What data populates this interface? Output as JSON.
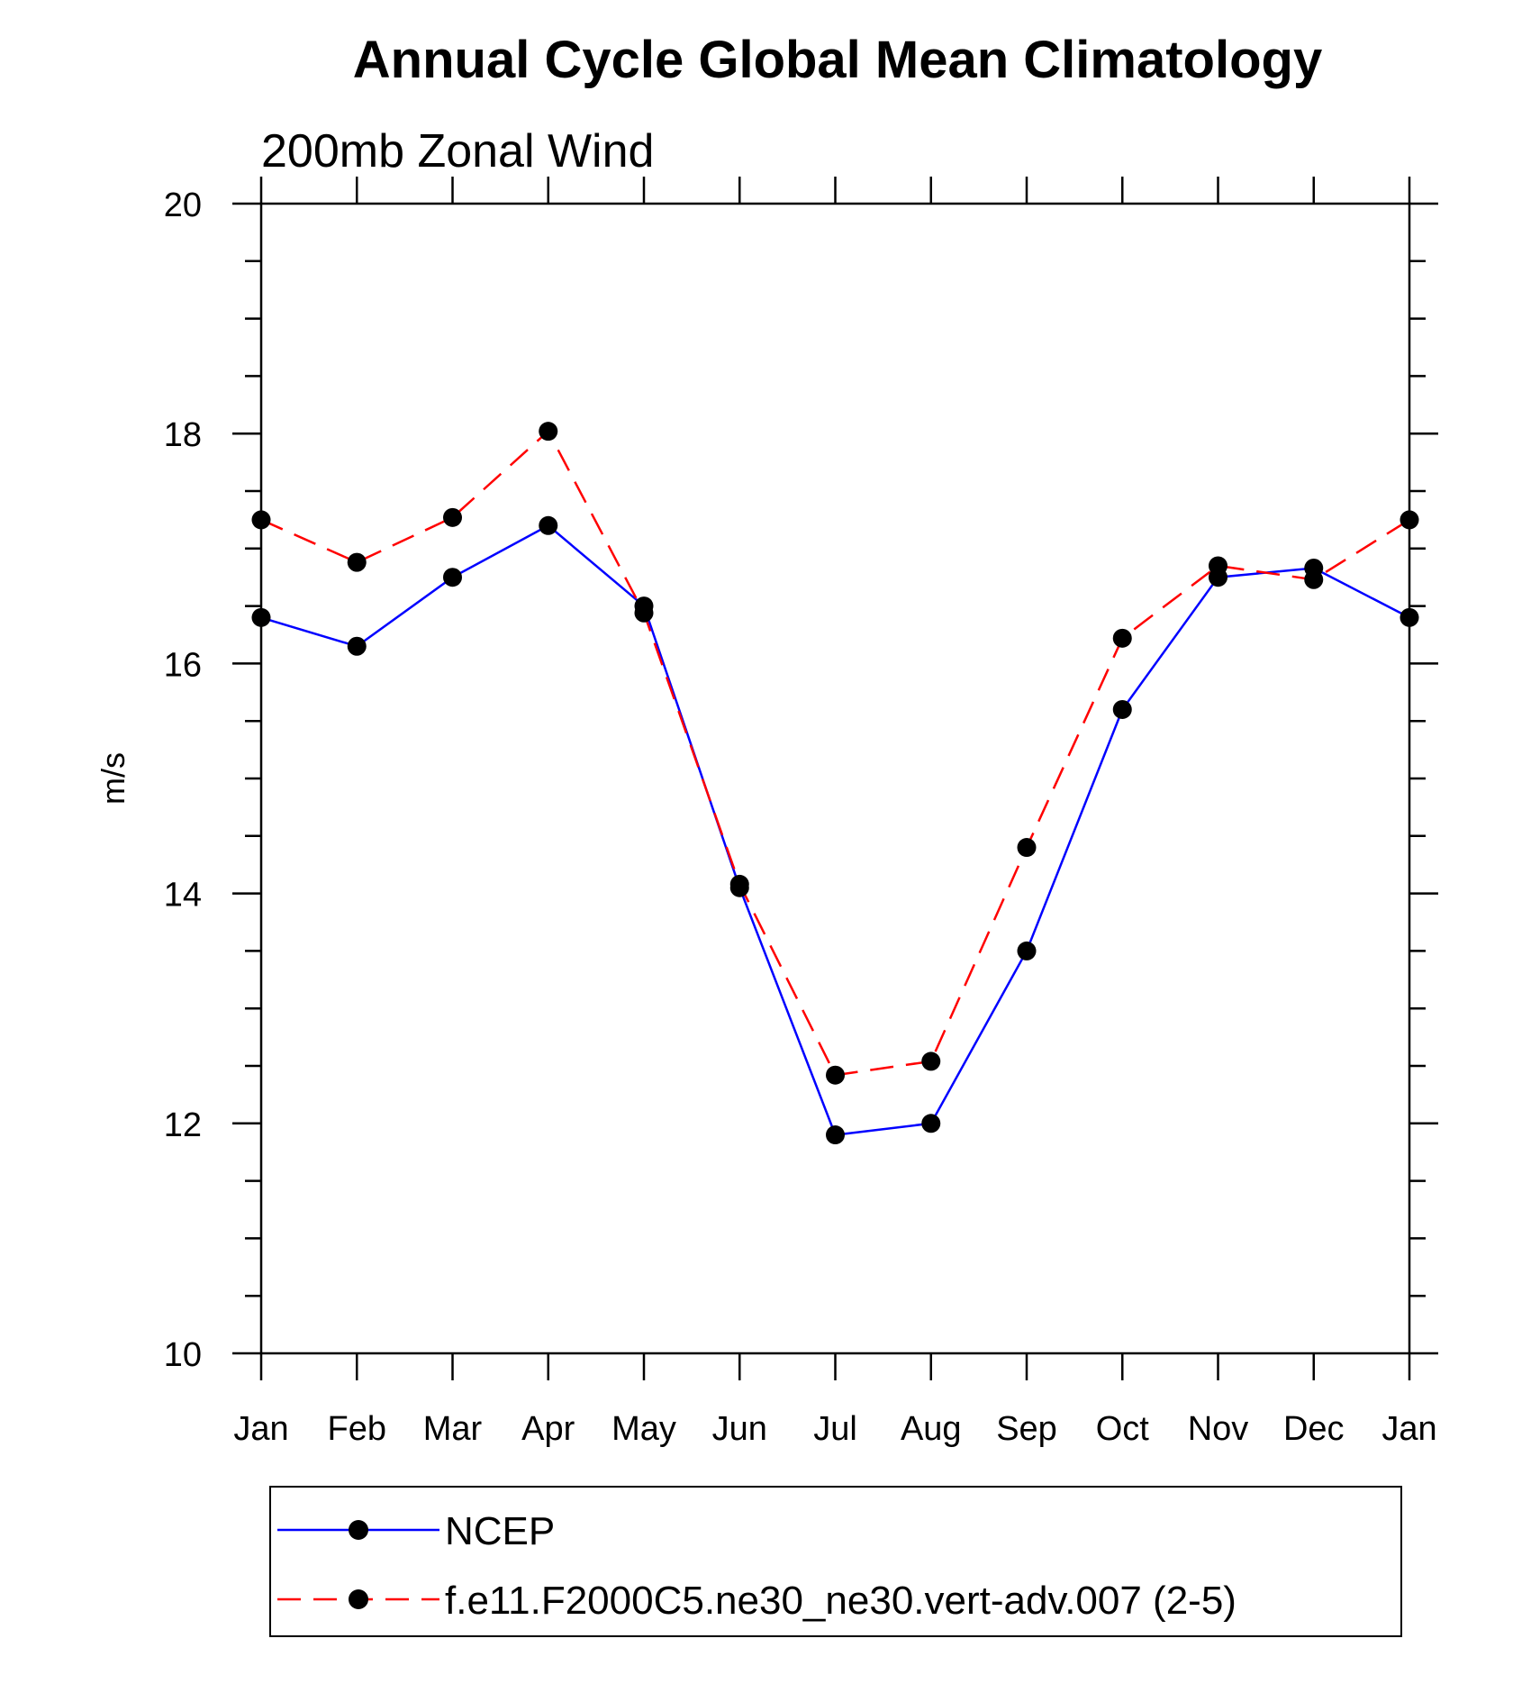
{
  "chart_data": {
    "type": "line",
    "title": "Annual Cycle Global Mean Climatology",
    "subtitle": "200mb Zonal Wind",
    "xlabel": "",
    "ylabel": "m/s",
    "categories": [
      "Jan",
      "Feb",
      "Mar",
      "Apr",
      "May",
      "Jun",
      "Jul",
      "Aug",
      "Sep",
      "Oct",
      "Nov",
      "Dec",
      "Jan"
    ],
    "ylim": [
      10,
      20
    ],
    "yticks": [
      "10",
      "12",
      "14",
      "16",
      "18",
      "20"
    ],
    "grid": false,
    "legend_position": "bottom",
    "series": [
      {
        "name": "NCEP",
        "color": "#0000ff",
        "line_style": "solid",
        "values": [
          16.4,
          16.15,
          16.75,
          17.2,
          16.5,
          14.05,
          11.9,
          12.0,
          13.5,
          15.6,
          16.75,
          16.83,
          16.4
        ]
      },
      {
        "name": "f.e11.F2000C5.ne30_ne30.vert-adv.007 (2-5)",
        "color": "#ff0000",
        "line_style": "dashed",
        "values": [
          17.25,
          16.88,
          17.27,
          18.02,
          16.44,
          14.08,
          12.42,
          12.54,
          14.4,
          16.22,
          16.85,
          16.73,
          17.25
        ]
      }
    ]
  }
}
